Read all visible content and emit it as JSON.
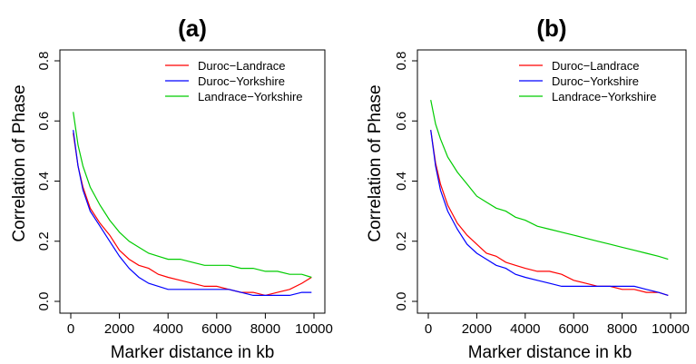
{
  "chart_data": [
    {
      "type": "line",
      "title": "(a)",
      "xlabel": "Marker distance in kb",
      "ylabel": "Correlation of Phase",
      "xlim": [
        0,
        10000
      ],
      "ylim": [
        0,
        0.8
      ],
      "xticks": [
        0,
        2000,
        4000,
        6000,
        8000,
        10000
      ],
      "yticks": [
        0.0,
        0.2,
        0.4,
        0.6,
        0.8
      ],
      "legend_position": "top-right",
      "series": [
        {
          "name": "Duroc−Landrace",
          "color": "#ff0000",
          "x": [
            100,
            300,
            500,
            800,
            1200,
            1600,
            2000,
            2400,
            2800,
            3200,
            3600,
            4000,
            4500,
            5000,
            5500,
            6000,
            6500,
            7000,
            7500,
            8000,
            8500,
            9000,
            9500,
            9900
          ],
          "y": [
            0.56,
            0.45,
            0.38,
            0.31,
            0.26,
            0.22,
            0.17,
            0.14,
            0.12,
            0.11,
            0.09,
            0.08,
            0.07,
            0.06,
            0.05,
            0.05,
            0.04,
            0.03,
            0.03,
            0.02,
            0.03,
            0.04,
            0.06,
            0.08
          ]
        },
        {
          "name": "Duroc−Yorkshire",
          "color": "#0000ff",
          "x": [
            100,
            300,
            500,
            800,
            1200,
            1600,
            2000,
            2400,
            2800,
            3200,
            3600,
            4000,
            4500,
            5000,
            5500,
            6000,
            6500,
            7000,
            7500,
            8000,
            8500,
            9000,
            9500,
            9900
          ],
          "y": [
            0.57,
            0.45,
            0.37,
            0.3,
            0.25,
            0.2,
            0.15,
            0.11,
            0.08,
            0.06,
            0.05,
            0.04,
            0.04,
            0.04,
            0.04,
            0.04,
            0.04,
            0.03,
            0.02,
            0.02,
            0.02,
            0.02,
            0.03,
            0.03
          ]
        },
        {
          "name": "Landrace−Yorkshire",
          "color": "#00cc00",
          "x": [
            100,
            300,
            500,
            800,
            1200,
            1600,
            2000,
            2400,
            2800,
            3200,
            3600,
            4000,
            4500,
            5000,
            5500,
            6000,
            6500,
            7000,
            7500,
            8000,
            8500,
            9000,
            9500,
            9900
          ],
          "y": [
            0.63,
            0.52,
            0.45,
            0.38,
            0.32,
            0.27,
            0.23,
            0.2,
            0.18,
            0.16,
            0.15,
            0.14,
            0.14,
            0.13,
            0.12,
            0.12,
            0.12,
            0.11,
            0.11,
            0.1,
            0.1,
            0.09,
            0.09,
            0.08
          ]
        }
      ]
    },
    {
      "type": "line",
      "title": "(b)",
      "xlabel": "Marker distance in kb",
      "ylabel": "Correlation of Phase",
      "xlim": [
        0,
        10000
      ],
      "ylim": [
        0,
        0.8
      ],
      "xticks": [
        0,
        2000,
        4000,
        6000,
        8000,
        10000
      ],
      "yticks": [
        0.0,
        0.2,
        0.4,
        0.6,
        0.8
      ],
      "legend_position": "top-right",
      "series": [
        {
          "name": "Duroc−Landrace",
          "color": "#ff0000",
          "x": [
            100,
            300,
            500,
            800,
            1200,
            1600,
            2000,
            2400,
            2800,
            3200,
            3600,
            4000,
            4500,
            5000,
            5500,
            6000,
            6500,
            7000,
            7500,
            8000,
            8500,
            9000,
            9500,
            9900
          ],
          "y": [
            0.57,
            0.46,
            0.39,
            0.32,
            0.26,
            0.22,
            0.19,
            0.16,
            0.15,
            0.13,
            0.12,
            0.11,
            0.1,
            0.1,
            0.09,
            0.07,
            0.06,
            0.05,
            0.05,
            0.04,
            0.04,
            0.03,
            0.03,
            0.02
          ]
        },
        {
          "name": "Duroc−Yorkshire",
          "color": "#0000ff",
          "x": [
            100,
            300,
            500,
            800,
            1200,
            1600,
            2000,
            2400,
            2800,
            3200,
            3600,
            4000,
            4500,
            5000,
            5500,
            6000,
            6500,
            7000,
            7500,
            8000,
            8500,
            9000,
            9500,
            9900
          ],
          "y": [
            0.57,
            0.45,
            0.37,
            0.3,
            0.24,
            0.19,
            0.16,
            0.14,
            0.12,
            0.11,
            0.09,
            0.08,
            0.07,
            0.06,
            0.05,
            0.05,
            0.05,
            0.05,
            0.05,
            0.05,
            0.05,
            0.04,
            0.03,
            0.02
          ]
        },
        {
          "name": "Landrace−Yorkshire",
          "color": "#00cc00",
          "x": [
            100,
            300,
            500,
            800,
            1200,
            1600,
            2000,
            2400,
            2800,
            3200,
            3600,
            4000,
            4500,
            5000,
            5500,
            6000,
            6500,
            7000,
            7500,
            8000,
            8500,
            9000,
            9500,
            9900
          ],
          "y": [
            0.67,
            0.59,
            0.54,
            0.48,
            0.43,
            0.39,
            0.35,
            0.33,
            0.31,
            0.3,
            0.28,
            0.27,
            0.25,
            0.24,
            0.23,
            0.22,
            0.21,
            0.2,
            0.19,
            0.18,
            0.17,
            0.16,
            0.15,
            0.14
          ]
        }
      ]
    }
  ]
}
